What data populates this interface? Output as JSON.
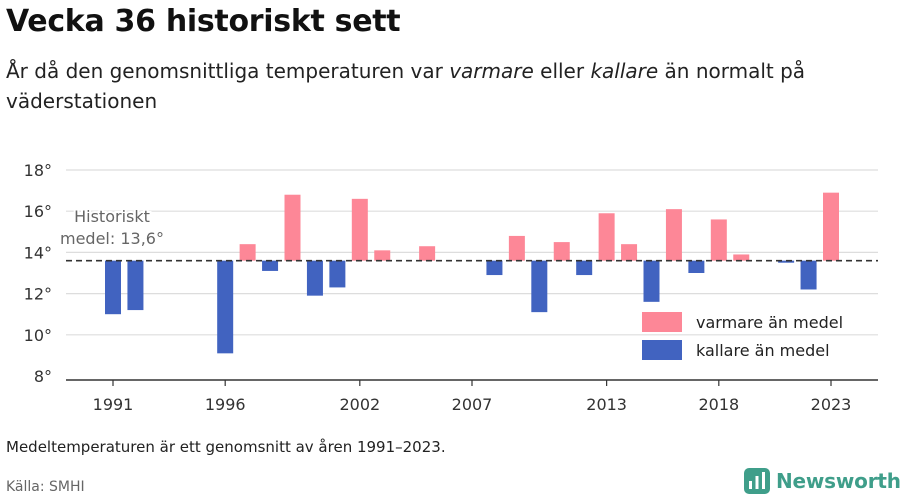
{
  "title": "Vecka 36 historiskt sett",
  "subtitle": {
    "part1": "År då den genomsnittliga temperaturen var ",
    "warmer_word": "varmare",
    "part2": " eller ",
    "colder_word": "kallare",
    "part3": " än normalt på väderstationen"
  },
  "footnote": "Medeltemperaturen är ett genomsnitt av åren 1991–2023.",
  "source": "Källa: SMHI",
  "brand": "Newsworthy",
  "colors": {
    "warm": "#fd8797",
    "cold": "#4163c0",
    "grid": "#dddddd",
    "axis": "#333333",
    "brand": "#3f9e8a"
  },
  "chart_data": {
    "type": "bar",
    "baseline": 13.6,
    "baseline_label": [
      "Historiskt",
      "medel: 13,6°"
    ],
    "ylim": [
      8,
      18
    ],
    "yticks": [
      8,
      10,
      12,
      14,
      16,
      18
    ],
    "ytick_labels": [
      "8°",
      "10°",
      "12°",
      "14°",
      "16°",
      "18°"
    ],
    "xticks": [
      1991,
      1996,
      2002,
      2007,
      2013,
      2018,
      2023
    ],
    "x": [
      1991,
      1992,
      1993,
      1994,
      1995,
      1996,
      1997,
      1998,
      1999,
      2000,
      2001,
      2002,
      2003,
      2004,
      2005,
      2006,
      2007,
      2008,
      2009,
      2010,
      2011,
      2012,
      2013,
      2014,
      2015,
      2016,
      2017,
      2018,
      2019,
      2020,
      2021,
      2022,
      2023
    ],
    "values": [
      11.0,
      11.2,
      null,
      null,
      null,
      9.1,
      14.4,
      13.1,
      16.8,
      11.9,
      12.3,
      16.6,
      14.1,
      null,
      14.3,
      null,
      null,
      12.9,
      14.8,
      11.1,
      14.5,
      12.9,
      15.9,
      14.4,
      11.6,
      16.1,
      13.0,
      15.6,
      13.9,
      null,
      13.5,
      12.2,
      16.9
    ],
    "legend": {
      "warm": "varmare än medel",
      "cold": "kallare än medel"
    }
  }
}
